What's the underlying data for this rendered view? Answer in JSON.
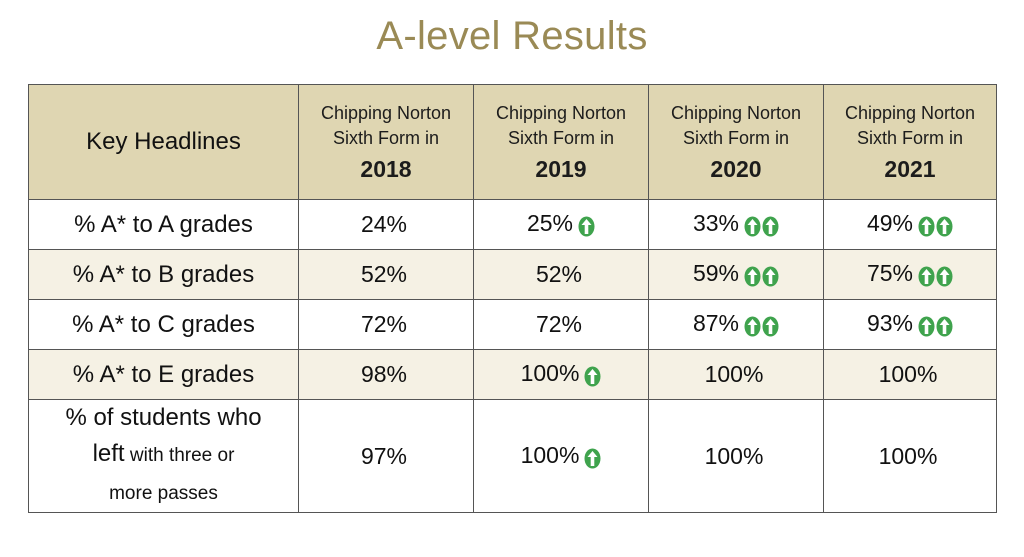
{
  "title": "A-level Results",
  "header": {
    "corner_label": "Key Headlines",
    "columns": [
      {
        "line1": "Chipping Norton",
        "line2": "Sixth Form in",
        "year": "2018"
      },
      {
        "line1": "Chipping Norton",
        "line2": "Sixth Form in",
        "year": "2019"
      },
      {
        "line1": "Chipping Norton",
        "line2": "Sixth Form in",
        "year": "2020"
      },
      {
        "line1": "Chipping Norton",
        "line2": "Sixth Form in",
        "year": "2021"
      }
    ]
  },
  "rows": [
    {
      "label": "% A* to A grades",
      "values": [
        "24%",
        "25%",
        "33%",
        "49%"
      ],
      "up_arrows": [
        0,
        1,
        2,
        2
      ]
    },
    {
      "label": "% A* to B grades",
      "values": [
        "52%",
        "52%",
        "59%",
        "75%"
      ],
      "up_arrows": [
        0,
        0,
        2,
        2
      ]
    },
    {
      "label": "% A* to C grades",
      "values": [
        "72%",
        "72%",
        "87%",
        "93%"
      ],
      "up_arrows": [
        0,
        0,
        2,
        2
      ]
    },
    {
      "label": "% A* to E grades",
      "values": [
        "98%",
        "100%",
        "100%",
        "100%"
      ],
      "up_arrows": [
        0,
        1,
        0,
        0
      ]
    }
  ],
  "last_row": {
    "label_line1": "% of students who",
    "label_line2_big": "left",
    "label_line2_small": " with three or",
    "label_line3": "more passes",
    "values": [
      "97%",
      "100%",
      "100%",
      "100%"
    ],
    "up_arrows": [
      0,
      1,
      0,
      0
    ]
  },
  "colors": {
    "title": "#9a8a55",
    "header_bg": "#dfd6b2",
    "alt_row_bg": "#f5f1e4",
    "arrow_green": "#3fa34d"
  },
  "icons": {
    "increase": "up-arrow-circle-icon"
  }
}
